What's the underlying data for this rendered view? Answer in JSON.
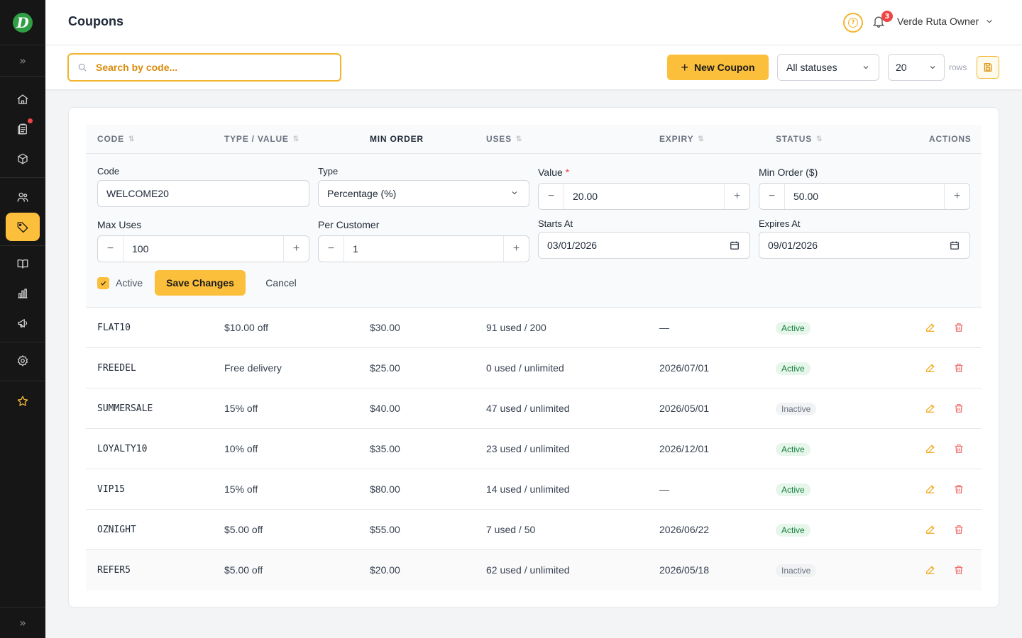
{
  "app": {
    "logo_letter": "D",
    "accent_color": "#fbbf3b",
    "sidebar_icons": [
      "home-icon",
      "orders-icon",
      "box-icon",
      "users-icon",
      "tag-icon",
      "map-icon",
      "chart-icon",
      "megaphone-icon",
      "gear-icon",
      "star-icon"
    ]
  },
  "header": {
    "title": "Coupons",
    "notification_count": "3",
    "user_name": "Verde Ruta Owner"
  },
  "toolbar": {
    "search_placeholder": "Search by code...",
    "new_coupon_label": "New Coupon",
    "status_filter": "All statuses",
    "rows_per_page": "20",
    "rows_label": "rows"
  },
  "table": {
    "columns": {
      "code": "CODE",
      "type_value": "TYPE / VALUE",
      "min_order": "MIN ORDER",
      "uses": "USES",
      "expiry": "EXPIRY",
      "status": "STATUS",
      "actions": "ACTIONS"
    },
    "rows": [
      {
        "code": "FLAT10",
        "type_value": "$10.00 off",
        "min_order": "$30.00",
        "uses": "91 used / 200",
        "expiry": "—",
        "status": "Active"
      },
      {
        "code": "FREEDEL",
        "type_value": "Free delivery",
        "min_order": "$25.00",
        "uses": "0 used / unlimited",
        "expiry": "2026/07/01",
        "status": "Active"
      },
      {
        "code": "SUMMERSALE",
        "type_value": "15% off",
        "min_order": "$40.00",
        "uses": "47 used / unlimited",
        "expiry": "2026/05/01",
        "status": "Inactive"
      },
      {
        "code": "LOYALTY10",
        "type_value": "10% off",
        "min_order": "$35.00",
        "uses": "23 used / unlimited",
        "expiry": "2026/12/01",
        "status": "Active"
      },
      {
        "code": "VIP15",
        "type_value": "15% off",
        "min_order": "$80.00",
        "uses": "14 used / unlimited",
        "expiry": "—",
        "status": "Active"
      },
      {
        "code": "OZNIGHT",
        "type_value": "$5.00 off",
        "min_order": "$55.00",
        "uses": "7 used / 50",
        "expiry": "2026/06/22",
        "status": "Active"
      },
      {
        "code": "REFER5",
        "type_value": "$5.00 off",
        "min_order": "$20.00",
        "uses": "62 used / unlimited",
        "expiry": "2026/05/18",
        "status": "Inactive"
      }
    ]
  },
  "edit_form": {
    "code_label": "Code",
    "code_value": "WELCOME20",
    "type_label": "Type",
    "type_value": "Percentage (%)",
    "value_label": "Value",
    "value_required": "*",
    "value_value": "20.00",
    "min_order_label": "Min Order ($)",
    "min_order_value": "50.00",
    "max_uses_label": "Max Uses",
    "max_uses_value": "100",
    "per_customer_label": "Per Customer",
    "per_customer_value": "1",
    "starts_at_label": "Starts At",
    "starts_at_value": "03/01/2026",
    "expires_at_label": "Expires At",
    "expires_at_value": "09/01/2026",
    "active_label": "Active",
    "active_checked": true,
    "save_label": "Save Changes",
    "cancel_label": "Cancel"
  }
}
